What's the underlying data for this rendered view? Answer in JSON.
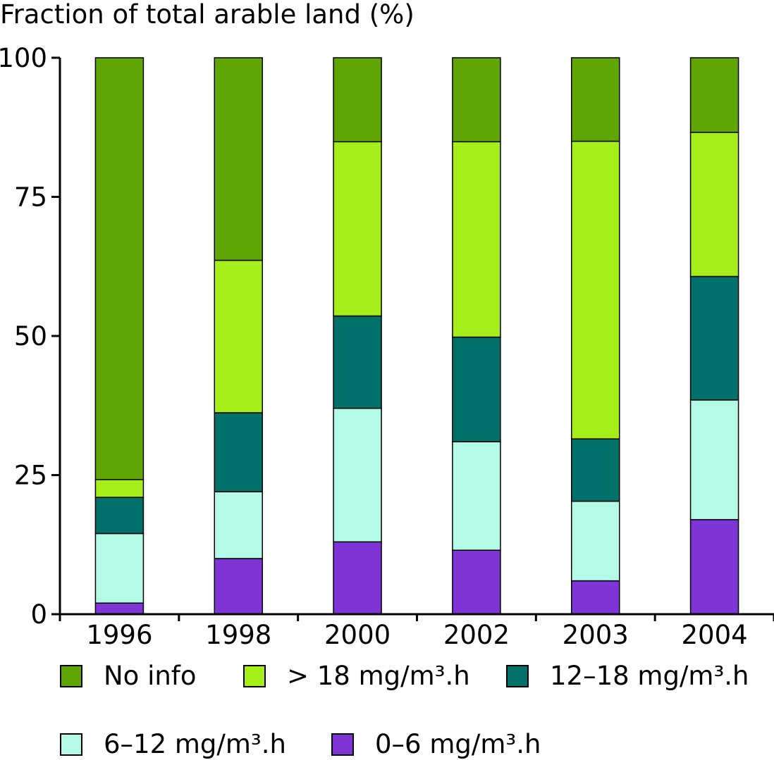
{
  "chart_data": {
    "type": "bar",
    "stacked": true,
    "title": "",
    "xlabel": "",
    "ylabel": "Fraction of total arable land (%)",
    "ylim": [
      0,
      100
    ],
    "yticks": [
      "0",
      "25",
      "50",
      "75",
      "100"
    ],
    "grid": false,
    "legend_position": "bottom",
    "categories": [
      "1996",
      "1998",
      "2000",
      "2002",
      "2003",
      "2004"
    ],
    "series": [
      {
        "name": "0–6 mg/m³.h",
        "color": "#7f35d6",
        "values": [
          2,
          10,
          13,
          11.5,
          6,
          17
        ]
      },
      {
        "name": "6–12 mg/m³.h",
        "color": "#b3fbe6",
        "values": [
          12.5,
          12,
          24,
          19.5,
          14.3,
          21.5
        ]
      },
      {
        "name": "12–18 mg/m³.h",
        "color": "#00706a",
        "values": [
          6.5,
          14.2,
          16.6,
          18.8,
          11.2,
          22.2
        ]
      },
      {
        "name": "> 18 mg/m³.h",
        "color": "#a6ee1a",
        "values": [
          3.2,
          27.4,
          31.3,
          35.1,
          53.5,
          25.9
        ]
      },
      {
        "name": "No info",
        "color": "#5fa503",
        "values": [
          75.8,
          36.4,
          15.1,
          15.1,
          15,
          13.4
        ]
      }
    ]
  },
  "legend": {
    "items": [
      {
        "label": "No info",
        "color": "#5fa503"
      },
      {
        "label": "> 18 mg/m³.h",
        "color": "#a6ee1a"
      },
      {
        "label": "12–18 mg/m³.h",
        "color": "#00706a"
      },
      {
        "label": "6–12 mg/m³.h",
        "color": "#b3fbe6"
      },
      {
        "label": "0–6 mg/m³.h",
        "color": "#7f35d6"
      }
    ]
  }
}
